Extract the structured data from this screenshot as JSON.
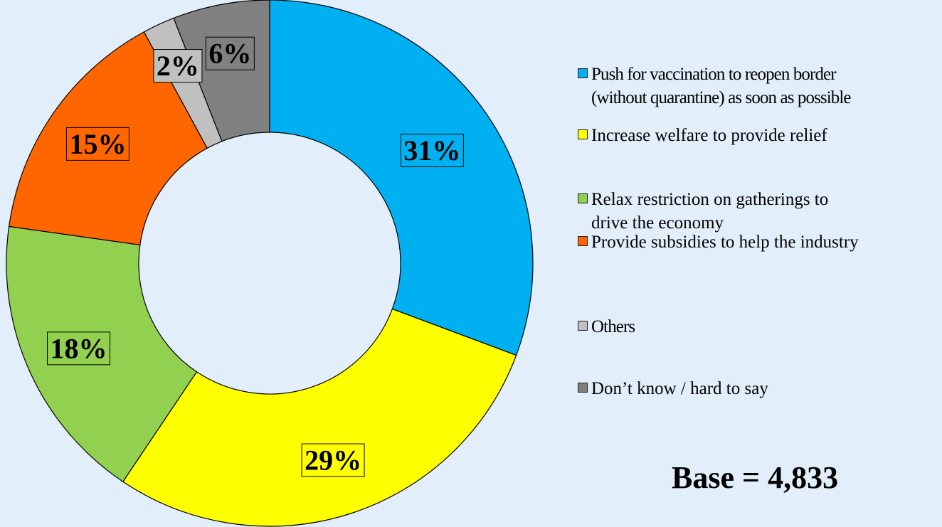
{
  "chart_data": {
    "type": "pie",
    "variant": "donut",
    "categories": [
      "Push for vaccination to reopen border\n(without quarantine) as soon as possible",
      "Increase welfare to provide relief",
      "Relax restriction on gatherings to\ndrive the economy",
      "Provide subsidies to help the industry",
      "Others",
      "Don’t know / hard to say"
    ],
    "values": [
      31,
      29,
      18,
      15,
      2,
      6
    ],
    "value_labels": [
      "31%",
      "29%",
      "18%",
      "15%",
      "2%",
      "6%"
    ],
    "colors": [
      "#00B0F0",
      "#FFFF00",
      "#92D050",
      "#FF6600",
      "#C0C0C0",
      "#808080"
    ],
    "legend_position": "right",
    "unit": "%"
  },
  "base_label": "Base = 4,833"
}
